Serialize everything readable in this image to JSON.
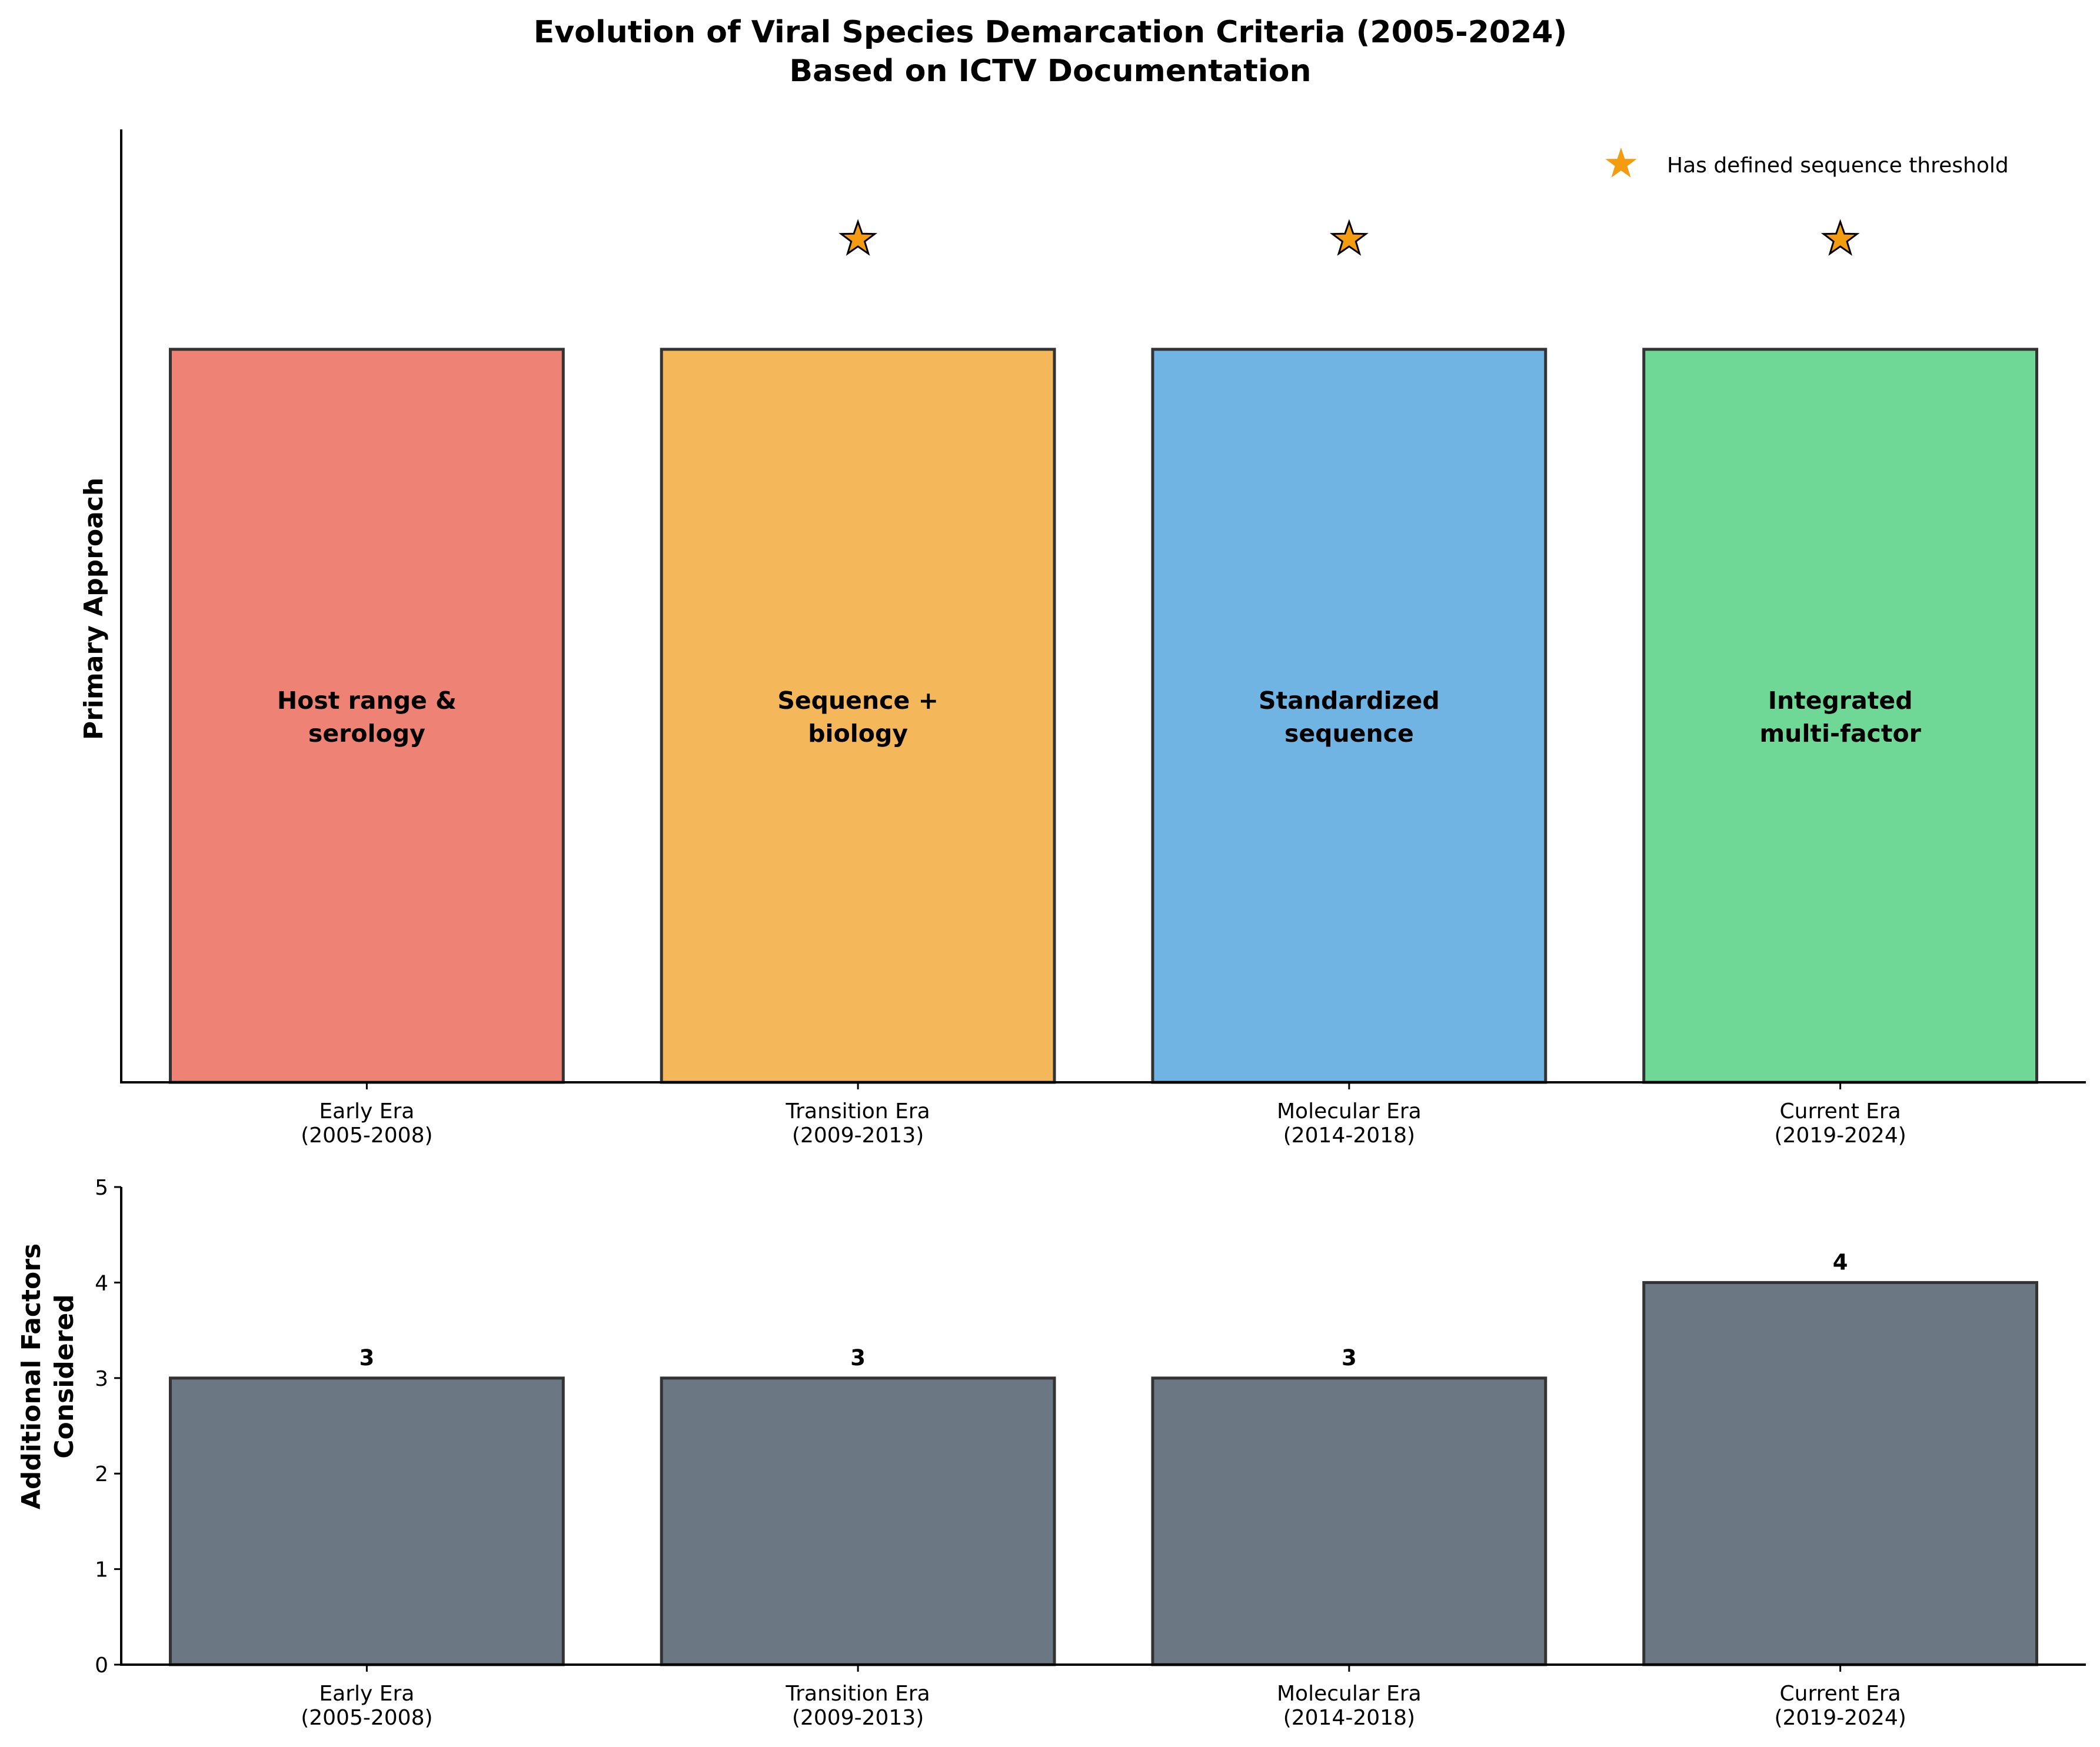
{
  "title_lines": [
    "Evolution of Viral Species Demarcation Criteria (2005-2024)",
    "Based on ICTV Documentation"
  ],
  "chart_data": [
    {
      "type": "bar",
      "ylabel": "Primary Approach",
      "categories": [
        [
          "Early Era",
          "(2005-2008)"
        ],
        [
          "Transition Era",
          "(2009-2013)"
        ],
        [
          "Molecular Era",
          "(2014-2018)"
        ],
        [
          "Current Era",
          "(2019-2024)"
        ]
      ],
      "values": [
        1,
        1,
        1,
        1
      ],
      "ylim": [
        0,
        1.3
      ],
      "bar_labels": [
        [
          "Host range &",
          "serology"
        ],
        [
          "Sequence +",
          "biology"
        ],
        [
          "Standardized",
          "sequence"
        ],
        [
          "Integrated",
          "multi-factor"
        ]
      ],
      "colors": [
        "#ee8275",
        "#f4b85a",
        "#6fb4e3",
        "#6fd897"
      ],
      "has_sequence_threshold": [
        false,
        true,
        true,
        true
      ],
      "marker_color": "#f39c12",
      "legend": {
        "label": "Has defined sequence threshold",
        "position": "top-right"
      },
      "yticks_visible": false
    },
    {
      "type": "bar",
      "ylabel": [
        "Additional Factors",
        "Considered"
      ],
      "categories": [
        [
          "Early Era",
          "(2005-2008)"
        ],
        [
          "Transition Era",
          "(2009-2013)"
        ],
        [
          "Molecular Era",
          "(2014-2018)"
        ],
        [
          "Current Era",
          "(2019-2024)"
        ]
      ],
      "values": [
        3,
        3,
        3,
        4
      ],
      "ylim": [
        0,
        5
      ],
      "yticks": [
        0,
        1,
        2,
        3,
        4,
        5
      ],
      "color": "#6c7784",
      "value_labels_shown": true
    }
  ]
}
